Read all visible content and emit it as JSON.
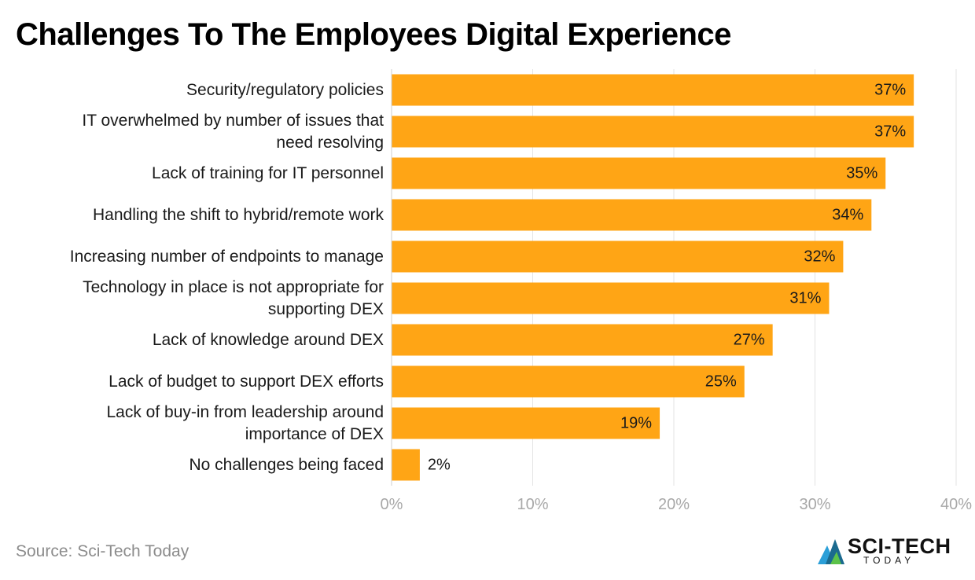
{
  "title": "Challenges To The Employees Digital Experience",
  "source": "Source: Sci-Tech Today",
  "logo": {
    "main": "SCI-TECH",
    "sub": "TODAY"
  },
  "colors": {
    "bar": "#FFA515",
    "grid": "#e3e3e3",
    "tick": "#a8a8a8",
    "label": "#1a1a1a"
  },
  "chart_data": {
    "type": "bar",
    "orientation": "horizontal",
    "title": "Challenges To The Employees Digital Experience",
    "xlabel": "",
    "ylabel": "",
    "xlim": [
      0,
      40
    ],
    "ticks": [
      0,
      10,
      20,
      30,
      40
    ],
    "tick_labels": [
      "0%",
      "10%",
      "20%",
      "30%",
      "40%"
    ],
    "grid": true,
    "categories": [
      [
        "Security/regulatory policies"
      ],
      [
        "IT overwhelmed by number of issues that",
        "need resolving"
      ],
      [
        "Lack of training for IT personnel"
      ],
      [
        "Handling the shift to hybrid/remote work"
      ],
      [
        "Increasing number of endpoints to manage"
      ],
      [
        "Technology in place is not appropriate for",
        "supporting DEX"
      ],
      [
        "Lack of knowledge around DEX"
      ],
      [
        "Lack of budget to support DEX efforts"
      ],
      [
        "Lack of buy-in from leadership around",
        "importance of DEX"
      ],
      [
        "No challenges being faced"
      ]
    ],
    "values": [
      37,
      37,
      35,
      34,
      32,
      31,
      27,
      25,
      19,
      2
    ],
    "value_labels": [
      "37%",
      "37%",
      "35%",
      "34%",
      "32%",
      "31%",
      "27%",
      "25%",
      "19%",
      "2%"
    ]
  }
}
